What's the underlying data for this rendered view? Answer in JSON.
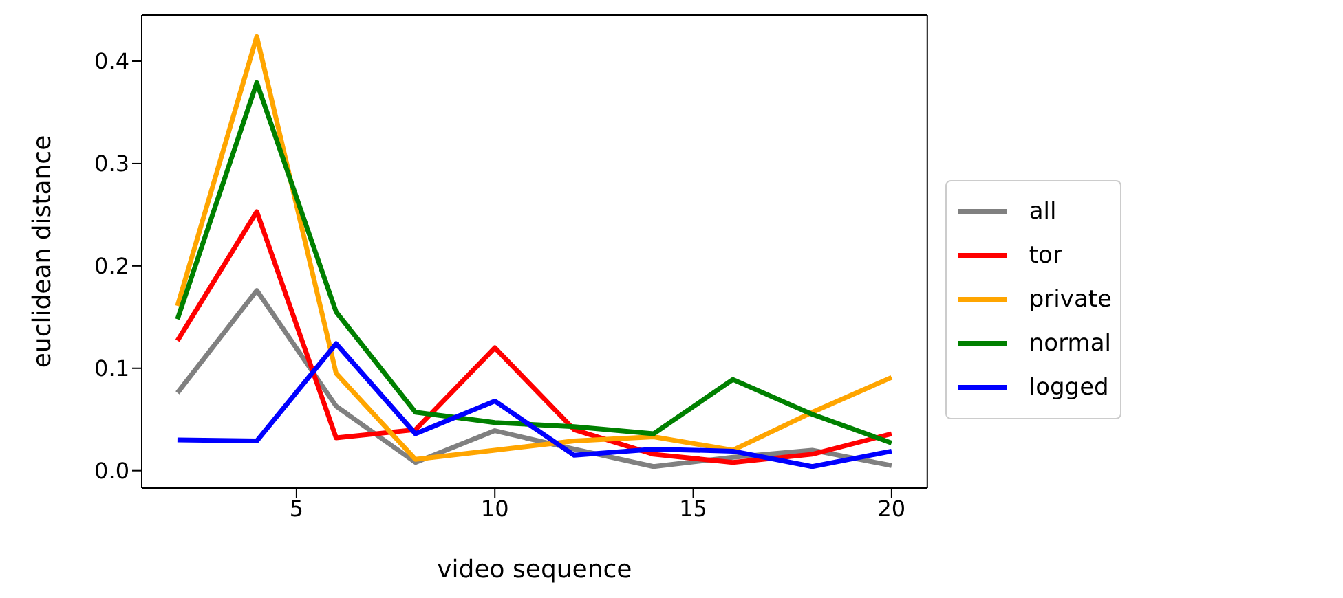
{
  "chart_data": {
    "type": "line",
    "xlabel": "video sequence",
    "ylabel": "euclidean distance",
    "x": [
      2,
      4,
      6,
      8,
      10,
      12,
      14,
      16,
      18,
      20
    ],
    "series": [
      {
        "name": "all",
        "color": "#808080",
        "values": [
          0.076,
          0.176,
          0.063,
          0.008,
          0.039,
          0.021,
          0.004,
          0.013,
          0.02,
          0.005
        ]
      },
      {
        "name": "tor",
        "color": "#ff0000",
        "values": [
          0.127,
          0.253,
          0.032,
          0.04,
          0.12,
          0.04,
          0.016,
          0.008,
          0.016,
          0.036
        ]
      },
      {
        "name": "private",
        "color": "#ffa500",
        "values": [
          0.161,
          0.424,
          0.095,
          0.011,
          0.02,
          0.029,
          0.033,
          0.02,
          0.057,
          0.091
        ]
      },
      {
        "name": "normal",
        "color": "#008000",
        "values": [
          0.148,
          0.379,
          0.155,
          0.057,
          0.047,
          0.043,
          0.036,
          0.089,
          0.055,
          0.027
        ]
      },
      {
        "name": "logged",
        "color": "#0000ff",
        "values": [
          0.03,
          0.029,
          0.124,
          0.036,
          0.068,
          0.015,
          0.021,
          0.019,
          0.004,
          0.019
        ]
      }
    ],
    "xlim": [
      1.1,
      20.9
    ],
    "ylim": [
      -0.017,
      0.445
    ],
    "xticks": [
      5,
      10,
      15,
      20
    ],
    "yticks": [
      {
        "value": 0,
        "label": "0.0"
      },
      {
        "value": 0.1,
        "label": "0.1"
      },
      {
        "value": 0.2,
        "label": "0.2"
      },
      {
        "value": 0.3,
        "label": "0.3"
      },
      {
        "value": 0.4,
        "label": "0.4"
      }
    ],
    "grid": false,
    "legend": "right",
    "marker": "none",
    "line_style": "solid"
  }
}
